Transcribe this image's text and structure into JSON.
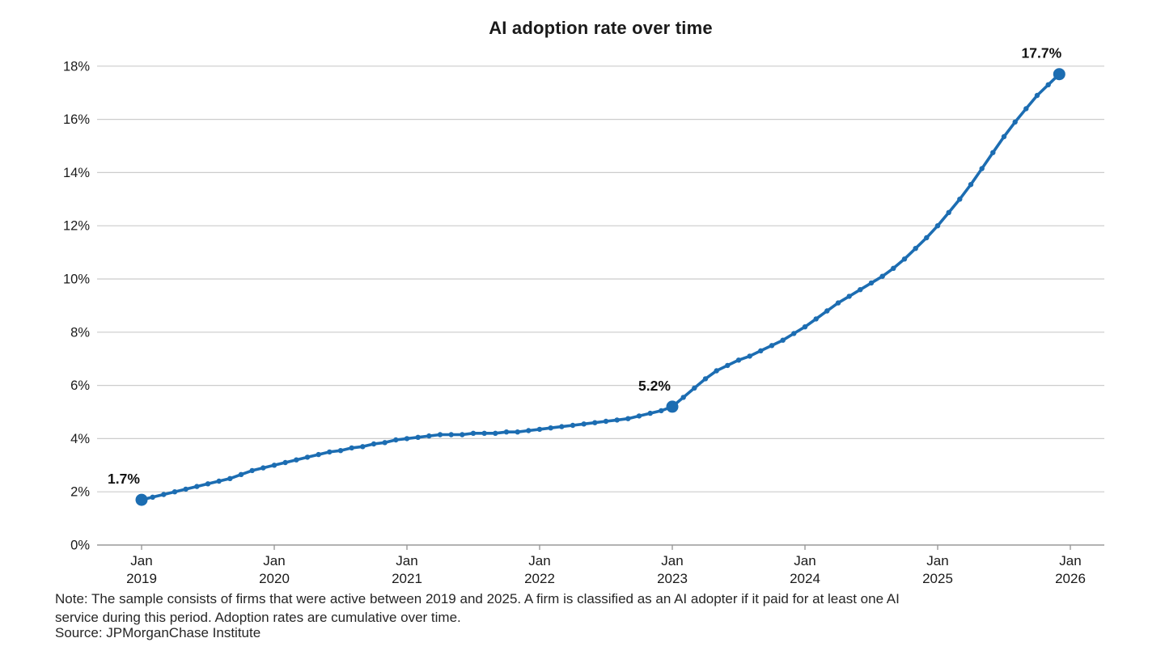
{
  "chart_data": {
    "type": "line",
    "title": "AI adoption rate over time",
    "series_name": "AI adoption rate",
    "unit": "%",
    "x_start": "2019-01",
    "x_interval": "month",
    "line_color": "#1c6db2",
    "grid_color": "#cccccc",
    "axis_color": "#999999",
    "label_color": "#1a1a1a",
    "grid": "horizontal",
    "ylim": [
      0,
      18
    ],
    "y_tick_labels": [
      "0%",
      "2%",
      "4%",
      "6%",
      "8%",
      "10%",
      "12%",
      "14%",
      "16%",
      "18%"
    ],
    "x_ticks": [
      {
        "month": "Jan",
        "year": "2019"
      },
      {
        "month": "Jan",
        "year": "2020"
      },
      {
        "month": "Jan",
        "year": "2021"
      },
      {
        "month": "Jan",
        "year": "2022"
      },
      {
        "month": "Jan",
        "year": "2023"
      },
      {
        "month": "Jan",
        "year": "2024"
      },
      {
        "month": "Jan",
        "year": "2025"
      },
      {
        "month": "Jan",
        "year": "2026"
      }
    ],
    "values": [
      1.7,
      1.8,
      1.9,
      2.0,
      2.1,
      2.2,
      2.3,
      2.4,
      2.5,
      2.65,
      2.8,
      2.9,
      3.0,
      3.1,
      3.2,
      3.3,
      3.4,
      3.5,
      3.55,
      3.65,
      3.7,
      3.8,
      3.85,
      3.95,
      4.0,
      4.05,
      4.1,
      4.15,
      4.15,
      4.15,
      4.2,
      4.2,
      4.2,
      4.25,
      4.25,
      4.3,
      4.35,
      4.4,
      4.45,
      4.5,
      4.55,
      4.6,
      4.65,
      4.7,
      4.75,
      4.85,
      4.95,
      5.05,
      5.2,
      5.55,
      5.9,
      6.25,
      6.55,
      6.75,
      6.95,
      7.1,
      7.3,
      7.5,
      7.7,
      7.95,
      8.2,
      8.5,
      8.8,
      9.1,
      9.35,
      9.6,
      9.85,
      10.1,
      10.4,
      10.75,
      11.15,
      11.55,
      12.0,
      12.5,
      13.0,
      13.55,
      14.15,
      14.75,
      15.35,
      15.9,
      16.4,
      16.9,
      17.3,
      17.7
    ],
    "annotations": [
      {
        "index": 0,
        "label": "1.7%"
      },
      {
        "index": 48,
        "label": "5.2%"
      },
      {
        "index": 83,
        "label": "17.7%"
      }
    ]
  },
  "notes": {
    "note": "Note: The sample consists of firms that were active between 2019 and 2025. A firm is classified as an AI adopter if it paid for at least one AI\nservice during this period. Adoption rates are cumulative over time.",
    "source": "Source: JPMorganChase Institute"
  }
}
